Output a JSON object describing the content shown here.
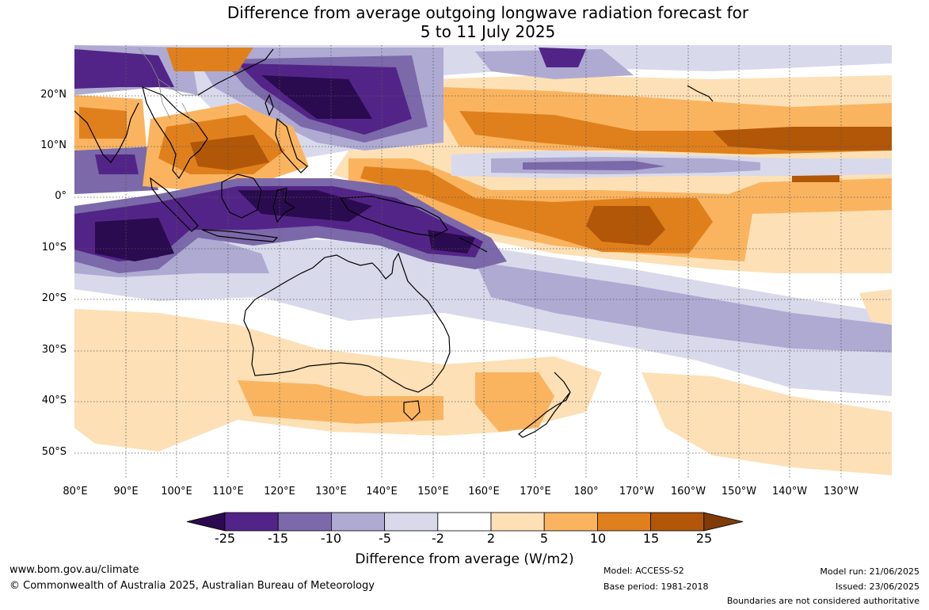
{
  "title_line1": "Difference from average outgoing longwave radiation forecast for",
  "title_line2": "5 to 11 July 2025",
  "lat_labels": [
    "20°N",
    "10°N",
    "0°",
    "10°S",
    "20°S",
    "30°S",
    "40°S",
    "50°S"
  ],
  "lon_labels": [
    "80°E",
    "90°E",
    "100°E",
    "110°E",
    "120°E",
    "130°E",
    "140°E",
    "150°E",
    "160°E",
    "170°E",
    "180°",
    "170°W",
    "160°W",
    "150°W",
    "140°W",
    "130°W"
  ],
  "colorbar": {
    "ticks": [
      "-25",
      "-15",
      "-10",
      "-5",
      "-2",
      "2",
      "5",
      "10",
      "15",
      "25"
    ],
    "colors": [
      "#2b0b4f",
      "#532487",
      "#7b69aa",
      "#aeaad2",
      "#d9d9ec",
      "#ffffff",
      "#fde0b6",
      "#fab460",
      "#e0801c",
      "#b25608",
      "#7f3b08"
    ],
    "label": "Difference from average (W/m2)"
  },
  "footer": {
    "website": "www.bom.gov.au/climate",
    "copyright": "© Commonwealth of Australia 2025, Australian Bureau of Meteorology",
    "model": "Model: ACCESS-S2",
    "base_period": "Base period: 1981-2018",
    "model_run": "Model run: 21/06/2025",
    "issued": "Issued: 23/06/2025",
    "disclaimer": "Boundaries are not considered authoritative"
  }
}
